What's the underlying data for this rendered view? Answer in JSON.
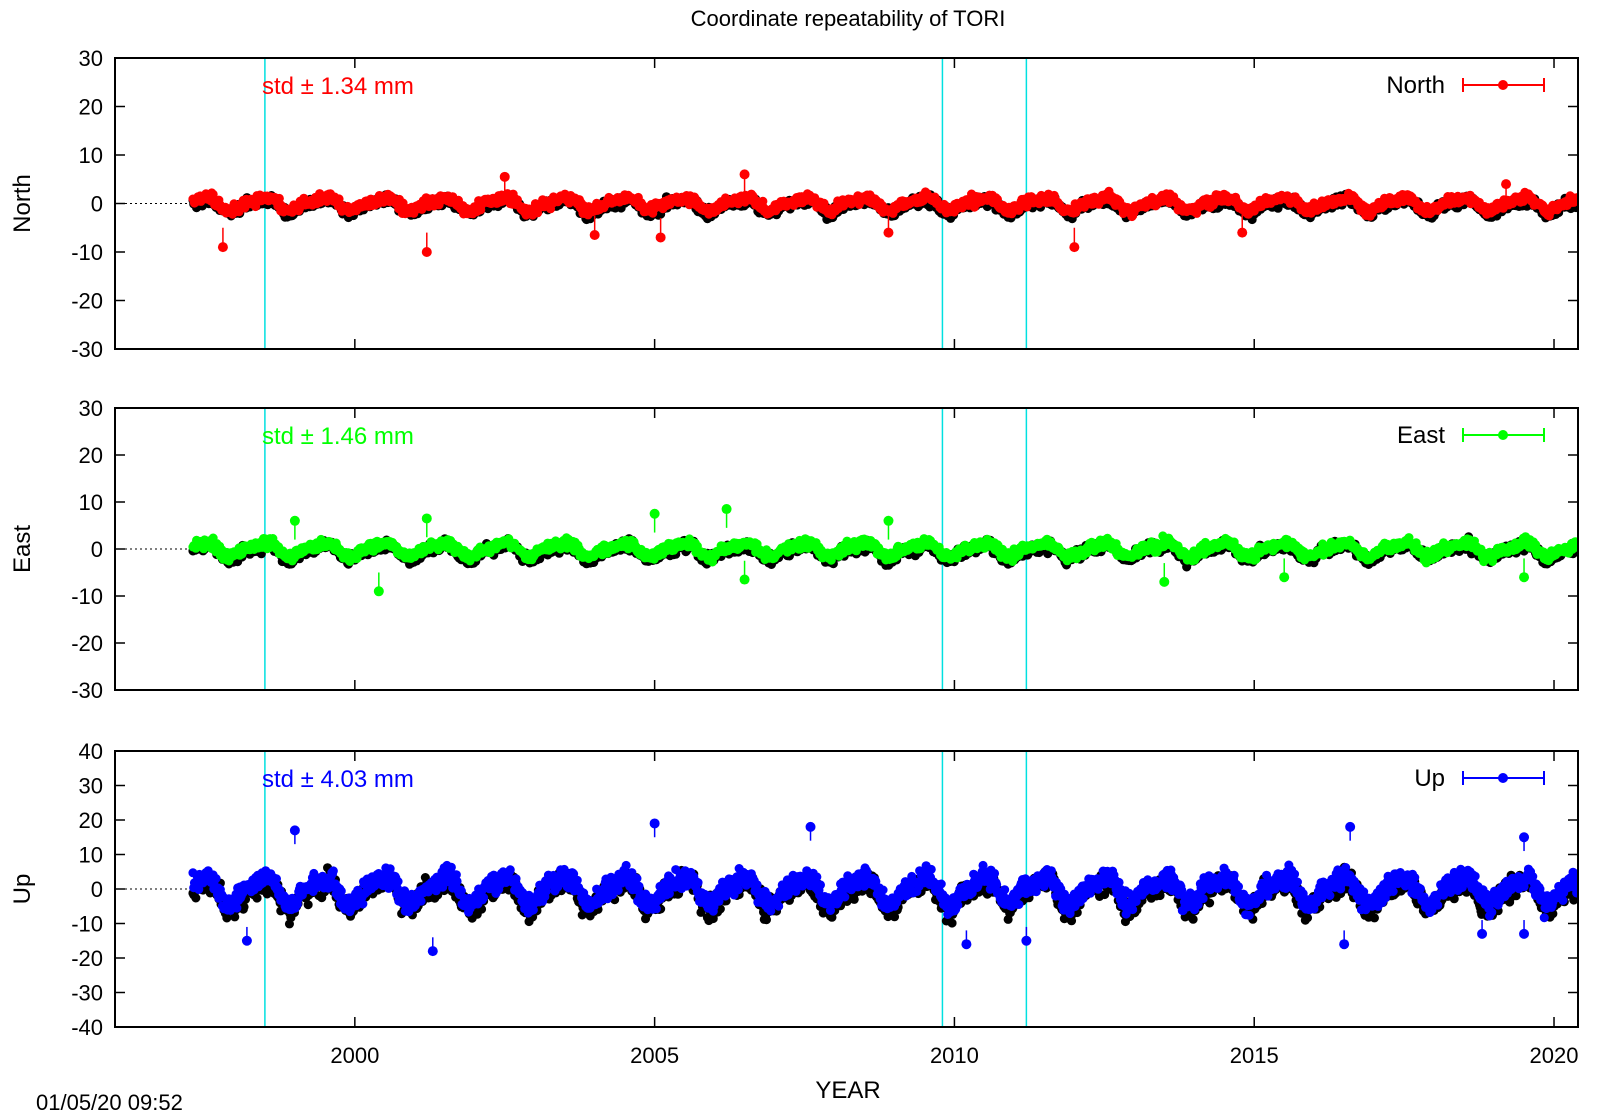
{
  "colors": {
    "north": "#ff0000",
    "east": "#00ff00",
    "up": "#0000ff",
    "raw": "#000000",
    "event_line": "#00e0e0",
    "zero_line": "#000000"
  },
  "chart_data": {
    "type": "scatter",
    "title": "Coordinate repeatability of TORI",
    "xlabel": "YEAR",
    "xlim": [
      1996,
      2020.4
    ],
    "xticks": [
      {
        "value": 2000,
        "label": "2000"
      },
      {
        "value": 2005,
        "label": "2005"
      },
      {
        "value": 2010,
        "label": "2010"
      },
      {
        "value": 2015,
        "label": "2015"
      },
      {
        "value": 2020,
        "label": "2020"
      }
    ],
    "event_lines": [
      1998.5,
      2009.8,
      2011.2
    ],
    "timestamp": "01/05/20 09:52",
    "panels": [
      {
        "id": "north",
        "ylabel": "North",
        "ylim": [
          -30,
          30
        ],
        "yticks": [
          "30",
          "20",
          "10",
          "0",
          "-10",
          "-20",
          "-30"
        ],
        "ytick_values": [
          30,
          20,
          10,
          0,
          -10,
          -20,
          -30
        ],
        "legend": "North",
        "std_label": "std ± 1.34 mm",
        "std": 1.34,
        "data_start": 1997.3,
        "data_end": 2020.4,
        "outliers": [
          {
            "x": 1997.8,
            "y": -9
          },
          {
            "x": 2001.2,
            "y": -10
          },
          {
            "x": 2004.0,
            "y": -6.5
          },
          {
            "x": 2005.1,
            "y": -7
          },
          {
            "x": 2008.9,
            "y": -6
          },
          {
            "x": 2012.0,
            "y": -9
          },
          {
            "x": 2014.8,
            "y": -6
          },
          {
            "x": 2019.2,
            "y": 4
          },
          {
            "x": 2002.5,
            "y": 5.5
          },
          {
            "x": 2006.5,
            "y": 6
          }
        ]
      },
      {
        "id": "east",
        "ylabel": "East",
        "ylim": [
          -30,
          30
        ],
        "yticks": [
          "30",
          "20",
          "10",
          "0",
          "-10",
          "-20",
          "-30"
        ],
        "ytick_values": [
          30,
          20,
          10,
          0,
          -10,
          -20,
          -30
        ],
        "legend": "East",
        "std_label": "std ± 1.46 mm",
        "std": 1.46,
        "data_start": 1997.3,
        "data_end": 2020.4,
        "outliers": [
          {
            "x": 1999.0,
            "y": 6
          },
          {
            "x": 2000.4,
            "y": -9
          },
          {
            "x": 2001.2,
            "y": 6.5
          },
          {
            "x": 2005.0,
            "y": 7.5
          },
          {
            "x": 2006.2,
            "y": 8.5
          },
          {
            "x": 2006.5,
            "y": -6.5
          },
          {
            "x": 2008.9,
            "y": 6
          },
          {
            "x": 2013.5,
            "y": -7
          },
          {
            "x": 2015.5,
            "y": -6
          },
          {
            "x": 2019.5,
            "y": -6
          }
        ]
      },
      {
        "id": "up",
        "ylabel": "Up",
        "ylim": [
          -40,
          40
        ],
        "yticks": [
          "40",
          "30",
          "20",
          "10",
          "0",
          "-10",
          "-20",
          "-30",
          "-40"
        ],
        "ytick_values": [
          40,
          30,
          20,
          10,
          0,
          -10,
          -20,
          -30,
          -40
        ],
        "legend": "Up",
        "std_label": "std ± 4.03 mm",
        "std": 4.03,
        "data_start": 1997.3,
        "data_end": 2020.4,
        "outliers": [
          {
            "x": 1998.2,
            "y": -15
          },
          {
            "x": 1999.0,
            "y": 17
          },
          {
            "x": 2001.3,
            "y": -18
          },
          {
            "x": 2005.0,
            "y": 19
          },
          {
            "x": 2007.6,
            "y": 18
          },
          {
            "x": 2010.2,
            "y": -16
          },
          {
            "x": 2011.2,
            "y": -15
          },
          {
            "x": 2016.5,
            "y": -16
          },
          {
            "x": 2016.6,
            "y": 18
          },
          {
            "x": 2018.8,
            "y": -13
          },
          {
            "x": 2019.5,
            "y": 15
          },
          {
            "x": 2019.5,
            "y": -13
          }
        ]
      }
    ]
  }
}
